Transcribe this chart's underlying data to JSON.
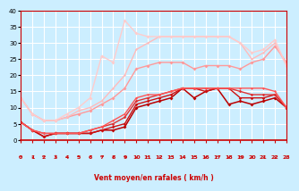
{
  "background_color": "#cceeff",
  "grid_color": "#ffffff",
  "xlabel": "Vent moyen/en rafales ( km/h )",
  "xlim": [
    0,
    23
  ],
  "ylim": [
    0,
    40
  ],
  "xticks": [
    0,
    1,
    2,
    3,
    4,
    5,
    6,
    7,
    8,
    9,
    10,
    11,
    12,
    13,
    14,
    15,
    16,
    17,
    18,
    19,
    20,
    21,
    22,
    23
  ],
  "yticks": [
    0,
    5,
    10,
    15,
    20,
    25,
    30,
    35,
    40
  ],
  "series": [
    {
      "x": [
        0,
        1,
        2,
        3,
        4,
        5,
        6,
        7,
        8,
        9,
        10,
        11,
        12,
        13,
        14,
        15,
        16,
        17,
        18,
        19,
        20,
        21,
        22,
        23
      ],
      "y": [
        5.5,
        3,
        1,
        2,
        2,
        2,
        2,
        3,
        3,
        4,
        10,
        11,
        12,
        13,
        16,
        13,
        15,
        16,
        11,
        12,
        11,
        12,
        13,
        10
      ],
      "color": "#bb0000",
      "lw": 1.1,
      "ms": 2.0
    },
    {
      "x": [
        0,
        1,
        2,
        3,
        4,
        5,
        6,
        7,
        8,
        9,
        10,
        11,
        12,
        13,
        14,
        15,
        16,
        17,
        18,
        19,
        20,
        21,
        22,
        23
      ],
      "y": [
        5.5,
        3,
        1,
        2,
        2,
        2,
        2,
        3,
        4,
        5,
        11,
        12,
        13,
        14,
        16,
        16,
        15,
        16,
        16,
        13,
        13,
        13,
        14,
        10
      ],
      "color": "#cc1111",
      "lw": 1.0,
      "ms": 1.8
    },
    {
      "x": [
        0,
        1,
        2,
        3,
        4,
        5,
        6,
        7,
        8,
        9,
        10,
        11,
        12,
        13,
        14,
        15,
        16,
        17,
        18,
        19,
        20,
        21,
        22,
        23
      ],
      "y": [
        5.5,
        3,
        2,
        2,
        2,
        2,
        3,
        4,
        5,
        7,
        12,
        13,
        14,
        15,
        16,
        16,
        16,
        16,
        16,
        15,
        14,
        14,
        14,
        10
      ],
      "color": "#dd3333",
      "lw": 1.0,
      "ms": 1.8
    },
    {
      "x": [
        0,
        1,
        2,
        3,
        4,
        5,
        6,
        7,
        8,
        9,
        10,
        11,
        12,
        13,
        14,
        15,
        16,
        17,
        18,
        19,
        20,
        21,
        22,
        23
      ],
      "y": [
        5.5,
        3,
        2,
        2,
        2,
        2,
        3,
        4,
        6,
        8,
        13,
        14,
        14,
        15,
        16,
        16,
        16,
        16,
        16,
        16,
        16,
        16,
        15,
        10
      ],
      "color": "#ff5555",
      "lw": 1.0,
      "ms": 1.5
    },
    {
      "x": [
        0,
        1,
        2,
        3,
        4,
        5,
        6,
        7,
        8,
        9,
        10,
        11,
        12,
        13,
        14,
        15,
        16,
        17,
        18,
        19,
        20,
        21,
        22,
        23
      ],
      "y": [
        13,
        8,
        6,
        6,
        7,
        8,
        9,
        11,
        13,
        16,
        22,
        23,
        24,
        24,
        24,
        22,
        23,
        23,
        23,
        22,
        24,
        25,
        29,
        24
      ],
      "color": "#ff9999",
      "lw": 1.0,
      "ms": 2.0
    },
    {
      "x": [
        0,
        1,
        2,
        3,
        4,
        5,
        6,
        7,
        8,
        9,
        10,
        11,
        12,
        13,
        14,
        15,
        16,
        17,
        18,
        19,
        20,
        21,
        22,
        23
      ],
      "y": [
        13,
        8,
        6,
        6,
        7,
        9,
        10,
        12,
        16,
        20,
        28,
        30,
        32,
        32,
        32,
        32,
        32,
        32,
        32,
        30,
        25,
        27,
        30,
        23
      ],
      "color": "#ffbbbb",
      "lw": 1.0,
      "ms": 1.5
    },
    {
      "x": [
        0,
        1,
        2,
        3,
        4,
        5,
        6,
        7,
        8,
        9,
        10,
        11,
        12,
        13,
        14,
        15,
        16,
        17,
        18,
        19,
        20,
        21,
        22,
        23
      ],
      "y": [
        13,
        8,
        6,
        6,
        8,
        10,
        13,
        26,
        24,
        37,
        33,
        32,
        32,
        32,
        32,
        32,
        32,
        32,
        32,
        30,
        27,
        28,
        31,
        23
      ],
      "color": "#ffcccc",
      "lw": 1.0,
      "ms": 2.0
    }
  ],
  "arrow_symbols": [
    "→",
    "↙",
    "←",
    "↓",
    "↙",
    "←",
    "↗",
    "←",
    "↙",
    "←",
    "↙",
    "←",
    "↙",
    "←",
    "↙",
    "←",
    "↙",
    "←",
    "↙",
    "←",
    "↙",
    "↙",
    "↙",
    "↙"
  ]
}
